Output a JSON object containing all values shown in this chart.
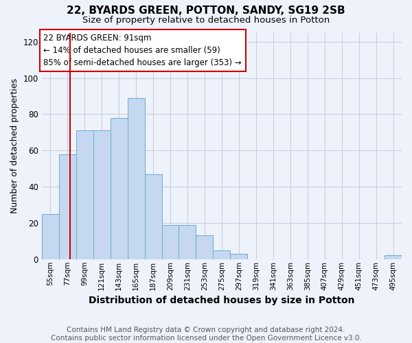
{
  "title": "22, BYARDS GREEN, POTTON, SANDY, SG19 2SB",
  "subtitle": "Size of property relative to detached houses in Potton",
  "xlabel": "Distribution of detached houses by size in Potton",
  "ylabel": "Number of detached properties",
  "footer1": "Contains HM Land Registry data © Crown copyright and database right 2024.",
  "footer2": "Contains public sector information licensed under the Open Government Licence v3.0.",
  "bar_labels": [
    "55sqm",
    "77sqm",
    "99sqm",
    "121sqm",
    "143sqm",
    "165sqm",
    "187sqm",
    "209sqm",
    "231sqm",
    "253sqm",
    "275sqm",
    "297sqm",
    "319sqm",
    "341sqm",
    "363sqm",
    "385sqm",
    "407sqm",
    "429sqm",
    "451sqm",
    "473sqm",
    "495sqm"
  ],
  "bar_values": [
    25,
    58,
    71,
    71,
    78,
    89,
    47,
    19,
    19,
    13,
    5,
    3,
    0,
    0,
    0,
    0,
    0,
    0,
    0,
    0,
    2
  ],
  "bar_color": "#c5d8f0",
  "bar_edge_color": "#6aaad4",
  "annotation_box_text": "22 BYARDS GREEN: 91sqm\n← 14% of detached houses are smaller (59)\n85% of semi-detached houses are larger (353) →",
  "annotation_box_color": "#ffffff",
  "annotation_box_edge_color": "#cc0000",
  "vline_color": "#cc0000",
  "vline_xindex": 1.5,
  "ylim": [
    0,
    125
  ],
  "yticks": [
    0,
    20,
    40,
    60,
    80,
    100,
    120
  ],
  "background_color": "#eef2fb",
  "grid_color": "#c8cfe0",
  "title_fontsize": 11,
  "subtitle_fontsize": 9.5,
  "xlabel_fontsize": 10,
  "ylabel_fontsize": 9,
  "tick_fontsize": 7.5,
  "footer_fontsize": 7.5,
  "annotation_fontsize": 8.5
}
